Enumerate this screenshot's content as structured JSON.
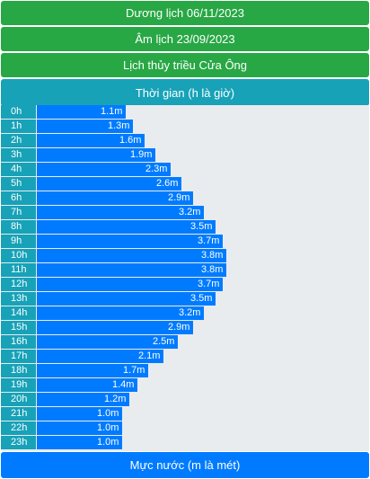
{
  "header": {
    "solar_date": "Dương lịch 06/11/2023",
    "lunar_date": "Âm lịch 23/09/2023",
    "title": "Lịch thủy triều Cửa Ông",
    "time_label": "Thời gian (h là giờ)",
    "level_label": "Mực nước (m là mét)"
  },
  "colors": {
    "green": "#28a745",
    "teal": "#17a2b8",
    "blue": "#007bff",
    "track": "#e9ecef"
  },
  "chart_data": {
    "type": "bar",
    "orientation": "horizontal",
    "categories": [
      "0h",
      "1h",
      "2h",
      "3h",
      "4h",
      "5h",
      "6h",
      "7h",
      "8h",
      "9h",
      "10h",
      "11h",
      "12h",
      "13h",
      "14h",
      "15h",
      "16h",
      "17h",
      "18h",
      "19h",
      "20h",
      "21h",
      "22h",
      "23h"
    ],
    "values": [
      1.1,
      1.3,
      1.6,
      1.9,
      2.3,
      2.6,
      2.9,
      3.2,
      3.5,
      3.7,
      3.8,
      3.8,
      3.7,
      3.5,
      3.2,
      2.9,
      2.5,
      2.1,
      1.7,
      1.4,
      1.2,
      1.0,
      1.0,
      1.0
    ],
    "value_labels": [
      "1.1m",
      "1.3m",
      "1.6m",
      "1.9m",
      "2.3m",
      "2.6m",
      "2.9m",
      "3.2m",
      "3.5m",
      "3.7m",
      "3.8m",
      "3.8m",
      "3.7m",
      "3.5m",
      "3.2m",
      "2.9m",
      "2.5m",
      "2.1m",
      "1.7m",
      "1.4m",
      "1.2m",
      "1.0m",
      "1.0m",
      "1.0m"
    ],
    "xlabel": "Mực nước (m là mét)",
    "ylabel": "Thời gian (h là giờ)",
    "grid": false
  }
}
